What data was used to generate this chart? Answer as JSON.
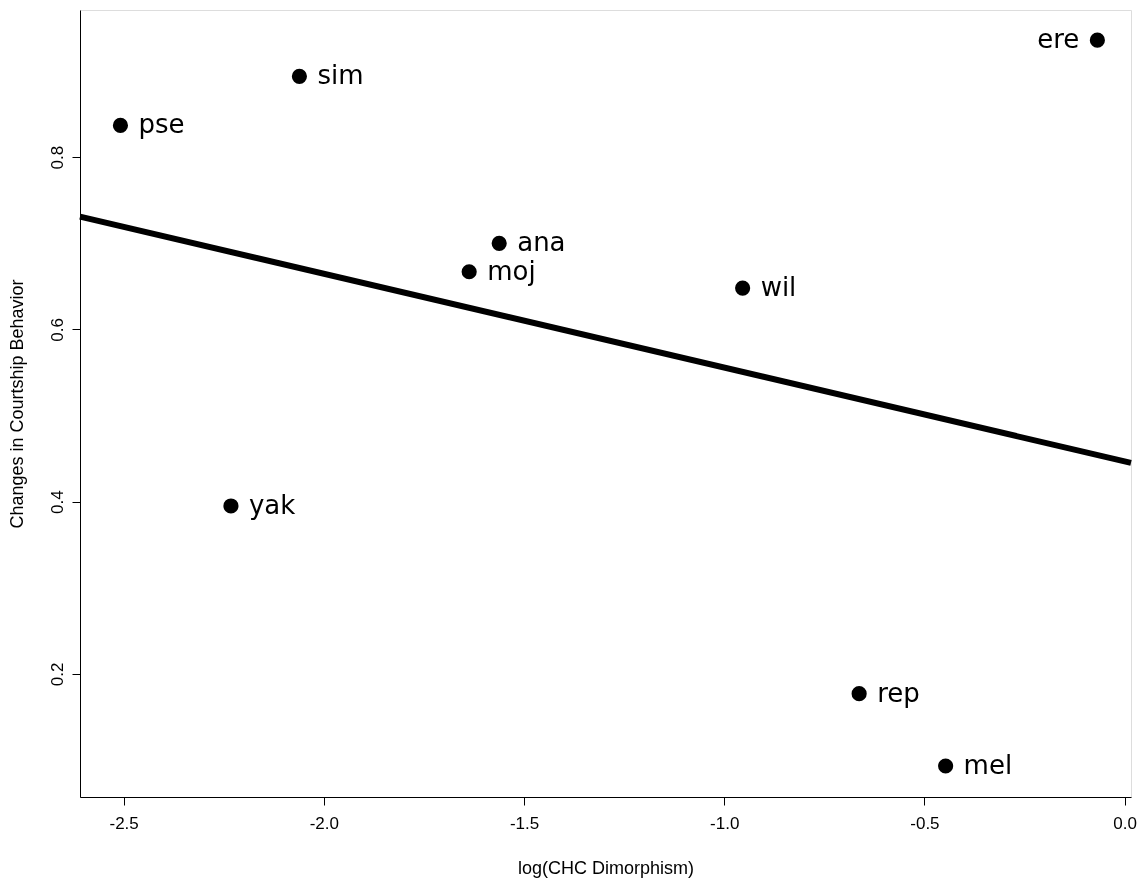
{
  "chart_data": {
    "type": "scatter",
    "xlabel": "log(CHC Dimorphism)",
    "ylabel": "Changes in Courtship Behavior",
    "series": [
      {
        "color": "#000000",
        "marker": "circle",
        "x": [
          -2.508,
          -2.061,
          -0.068,
          -1.562,
          -1.637,
          -0.954,
          -2.232,
          -0.663,
          -0.447
        ],
        "values": [
          0.837,
          0.894,
          0.936,
          0.7,
          0.667,
          0.648,
          0.395,
          0.177,
          0.093
        ]
      },
      {
        "type": "line",
        "color": "#000000",
        "x": [
          -2.609,
          0.016
        ],
        "values": [
          0.731,
          0.445
        ]
      }
    ],
    "annotations": [
      {
        "text": "pse",
        "x": -2.508,
        "y": 0.837
      },
      {
        "text": "sim",
        "x": -2.061,
        "y": 0.894
      },
      {
        "text": "ere",
        "x": -0.068,
        "y": 0.936
      },
      {
        "text": "ana",
        "x": -1.562,
        "y": 0.7
      },
      {
        "text": "moj",
        "x": -1.637,
        "y": 0.667
      },
      {
        "text": "wil",
        "x": -0.954,
        "y": 0.648
      },
      {
        "text": "yak",
        "x": -2.232,
        "y": 0.395
      },
      {
        "text": "rep",
        "x": -0.663,
        "y": 0.177
      },
      {
        "text": "mel",
        "x": -0.447,
        "y": 0.093
      }
    ],
    "xlim": [
      -2.609,
      0.016
    ],
    "ylim": [
      0.057,
      0.971
    ],
    "xticks": [
      -2.5,
      {
        "value": -2,
        "label": "-2.0"
      },
      -1.5,
      {
        "value": -1,
        "label": "-1.0"
      },
      -0.5,
      {
        "value": 0,
        "label": "0.0"
      }
    ],
    "yticks": [
      0.2,
      0.4,
      0.6,
      0.8
    ],
    "grid": false
  }
}
